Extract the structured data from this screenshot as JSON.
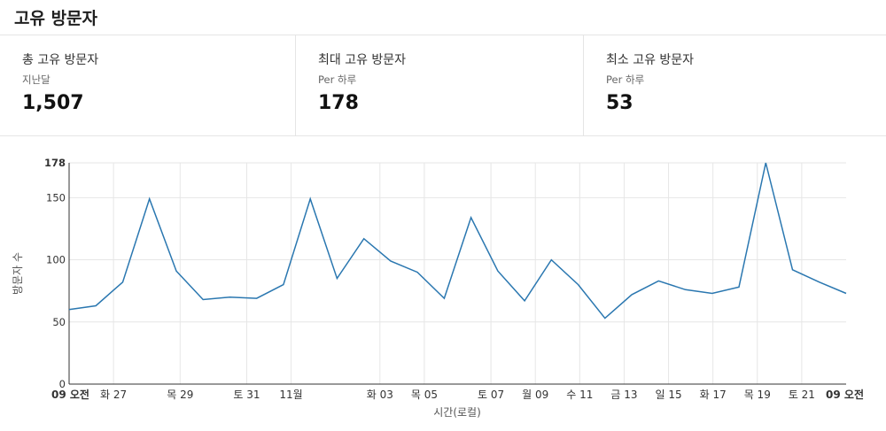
{
  "header": {
    "title": "고유 방문자"
  },
  "stats": [
    {
      "label": "총 고유 방문자",
      "sublabel": "지난달",
      "value": "1,507"
    },
    {
      "label": "최대 고유 방문자",
      "sublabel": "Per 하루",
      "value": "178"
    },
    {
      "label": "최소 고유 방문자",
      "sublabel": "Per 하루",
      "value": "53"
    }
  ],
  "chart_data": {
    "type": "line",
    "title": "",
    "xlabel": "시간(로컬)",
    "ylabel": "방문자 수",
    "ylim": [
      0,
      178
    ],
    "yticks": [
      0,
      50,
      100,
      150,
      178
    ],
    "ytick_labels": [
      "0",
      "50",
      "100",
      "150",
      "178"
    ],
    "grid": true,
    "line_color": "#2a77b0",
    "grid_color": "#e6e6e6",
    "axis_color": "#333333",
    "x_tick_positions": [
      0,
      2,
      5,
      8,
      10,
      14,
      16,
      19,
      21,
      23,
      25,
      29
    ],
    "x_tick_labels": [
      "09 오전",
      "화 27",
      "목 29",
      "토 31",
      "11월",
      "화 03",
      "목 05",
      "토 07",
      "월 09",
      "수 11",
      "금 13",
      "09 오전"
    ],
    "x_tick_bold": [
      true,
      false,
      false,
      false,
      false,
      false,
      false,
      false,
      false,
      false,
      false,
      true
    ],
    "x_tick_positions_2": [
      21,
      23,
      25,
      27,
      29,
      31,
      33,
      35
    ],
    "x_tick_labels_2": [
      "월 09",
      "수 11",
      "금 13",
      "일 15",
      "화 17",
      "목 19",
      "토 21",
      "09 오전"
    ],
    "series": [
      {
        "values": [
          60,
          63,
          82,
          149,
          91,
          68,
          70,
          69,
          80,
          149,
          85,
          117,
          99,
          90,
          69,
          134,
          91,
          67,
          100,
          80,
          53,
          72,
          83,
          76,
          73,
          78,
          178,
          92,
          82,
          73
        ]
      }
    ]
  }
}
